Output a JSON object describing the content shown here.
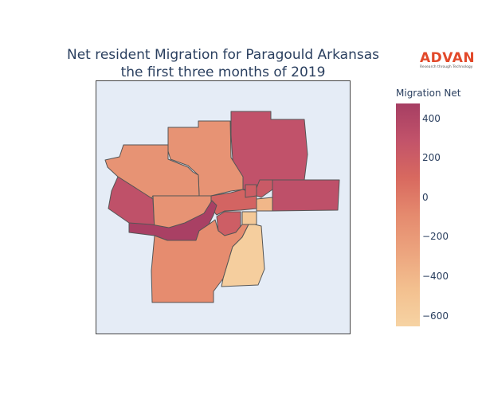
{
  "title_line1": "Net resident Migration for Paragould Arkansas",
  "title_line2": "the first three months of 2019",
  "logo": {
    "word": "ADVAN",
    "tagline": "Research through Technology",
    "color": "#e2492a"
  },
  "colorbar": {
    "title": "Migration Net",
    "ticks": [
      "400",
      "200",
      "0",
      "−200",
      "−400",
      "−600"
    ],
    "tick_values": [
      400,
      200,
      0,
      -200,
      -400,
      -600
    ],
    "range": [
      -650,
      480
    ],
    "colorscale": [
      "#f6d3a3",
      "#f3c08f",
      "#eca47e",
      "#e58a6e",
      "#d8695f",
      "#c2536a",
      "#a63e63"
    ]
  },
  "regions": [
    {
      "name": "north-east-tract",
      "value": 300
    },
    {
      "name": "east-tract",
      "value": 320
    },
    {
      "name": "north-central-tract",
      "value": -150
    },
    {
      "name": "north-west-tract",
      "value": -150
    },
    {
      "name": "west-tract",
      "value": 310
    },
    {
      "name": "center-west-tract",
      "value": -150
    },
    {
      "name": "center-tract",
      "value": 150
    },
    {
      "name": "center-small-a",
      "value": 200
    },
    {
      "name": "center-small-b",
      "value": 230
    },
    {
      "name": "center-small-c",
      "value": -400
    },
    {
      "name": "corridor-tract",
      "value": 460
    },
    {
      "name": "south-central-small",
      "value": 200
    },
    {
      "name": "south-tract",
      "value": -100
    },
    {
      "name": "south-east-tract",
      "value": -600
    },
    {
      "name": "south-east-small",
      "value": -550
    }
  ]
}
